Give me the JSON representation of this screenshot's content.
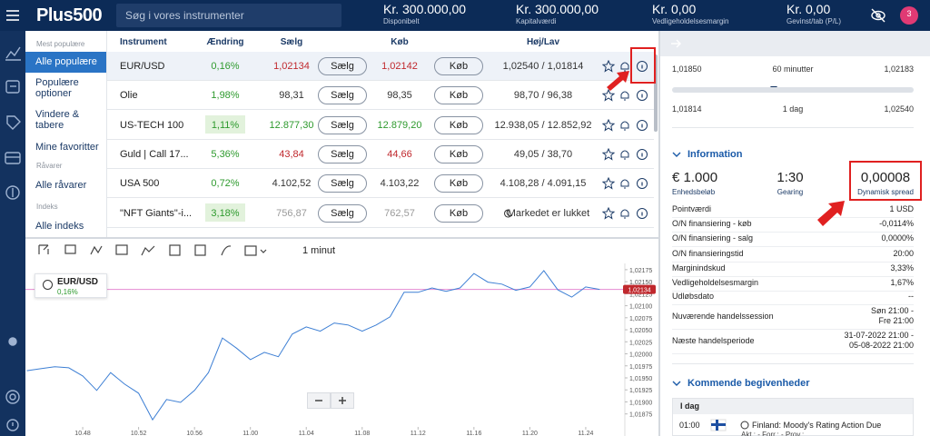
{
  "header": {
    "logo": "Plus500",
    "search_placeholder": "Søg i vores instrumenter",
    "stats": [
      {
        "value": "Kr. 300.000,00",
        "label": "Disponibelt"
      },
      {
        "value": "Kr. 300.000,00",
        "label": "Kapitalværdi"
      },
      {
        "value": "Kr. 0,00",
        "label": "Vedligeholdelsesmargin"
      },
      {
        "value": "Kr. 0,00",
        "label": "Gevinst/tab (P/L)"
      }
    ],
    "badge": "3"
  },
  "sidebar": {
    "sections": [
      {
        "title": "Mest populære",
        "items": [
          "Alle populære",
          "Populære optioner",
          "Vindere & tabere",
          "Mine favoritter"
        ]
      },
      {
        "title": "Råvarer",
        "items": [
          "Alle råvarer"
        ]
      },
      {
        "title": "Indeks",
        "items": [
          "Alle indeks"
        ]
      }
    ]
  },
  "table": {
    "columns": [
      "Instrument",
      "Ændring",
      "Sælg",
      "Køb",
      "Høj/Lav"
    ],
    "sell_button": "Sælg",
    "buy_button": "Køb",
    "rows": [
      {
        "instrument": "EUR/USD",
        "change": "0,16%",
        "sell": "1,02134",
        "buy": "1,02142",
        "high_low": "1,02540 / 1,01814"
      },
      {
        "instrument": "Olie",
        "change": "1,98%",
        "sell": "98,31",
        "buy": "98,35",
        "high_low": "98,70 / 96,38"
      },
      {
        "instrument": "US-TECH 100",
        "change": "1,11%",
        "sell": "12.877,30",
        "buy": "12.879,20",
        "high_low": "12.938,05 / 12.852,92"
      },
      {
        "instrument": "Guld | Call 17...",
        "change": "5,36%",
        "sell": "43,84",
        "buy": "44,66",
        "high_low": "49,05 / 38,70"
      },
      {
        "instrument": "USA 500",
        "change": "0,72%",
        "sell": "4.102,52",
        "buy": "4.103,22",
        "high_low": "4.108,28 / 4.091,15"
      },
      {
        "instrument": "\"NFT Giants\"-i...",
        "change": "3,18%",
        "sell": "756,87",
        "buy": "762,57",
        "high_low": "Markedet er lukket"
      }
    ]
  },
  "chart": {
    "type": "line",
    "instrument": "EUR/USD",
    "change": "0,16%",
    "timeframe": "1 minut",
    "color": "#3d7fd4",
    "x": [
      644,
      645,
      646,
      647,
      648,
      649,
      650,
      651,
      652,
      653,
      654,
      655,
      656,
      657,
      658,
      659,
      660,
      661,
      662,
      663,
      664,
      665,
      666,
      667,
      668,
      669,
      670,
      671,
      672,
      673,
      674,
      675,
      676,
      677,
      678,
      679,
      680,
      681,
      682,
      683,
      684,
      685
    ],
    "values": [
      1.01965,
      1.01969,
      1.01973,
      1.01971,
      1.01954,
      1.01924,
      1.01961,
      1.01937,
      1.01918,
      1.01863,
      1.01905,
      1.01899,
      1.01924,
      1.01961,
      1.02033,
      1.02012,
      1.01988,
      1.02003,
      1.01994,
      1.02041,
      1.02056,
      1.02047,
      1.02064,
      1.0206,
      1.02047,
      1.0206,
      1.02077,
      1.02128,
      1.02128,
      1.02137,
      1.0213,
      1.02137,
      1.02167,
      1.02149,
      1.02145,
      1.02132,
      1.02139,
      1.02173,
      1.02133,
      1.02118,
      1.02139,
      1.02134
    ],
    "xlim": [
      643.9,
      686.8
    ],
    "xticks": [
      {
        "value": 648,
        "label": "10.48"
      },
      {
        "value": 652,
        "label": "10.52"
      },
      {
        "value": 656,
        "label": "10.56"
      },
      {
        "value": 660,
        "label": "11.00"
      },
      {
        "value": 664,
        "label": "11.04"
      },
      {
        "value": 668,
        "label": "11.08"
      },
      {
        "value": 672,
        "label": "11.12"
      },
      {
        "value": 676,
        "label": "11.16"
      },
      {
        "value": 680,
        "label": "11.20"
      },
      {
        "value": 684,
        "label": "11.24"
      }
    ],
    "ylim": [
      1.01848,
      1.02188
    ],
    "yticks": [
      {
        "value": 1.01875,
        "label": "1,01875"
      },
      {
        "value": 1.019,
        "label": "1,01900"
      },
      {
        "value": 1.01925,
        "label": "1,01925"
      },
      {
        "value": 1.0195,
        "label": "1,01950"
      },
      {
        "value": 1.01975,
        "label": "1,01975"
      },
      {
        "value": 1.02,
        "label": "1,02000"
      },
      {
        "value": 1.02025,
        "label": "1,02025"
      },
      {
        "value": 1.0205,
        "label": "1,02050"
      },
      {
        "value": 1.02075,
        "label": "1,02075"
      },
      {
        "value": 1.021,
        "label": "1,02100"
      },
      {
        "value": 1.02125,
        "label": "1,02125"
      },
      {
        "value": 1.0215,
        "label": "1,02150"
      },
      {
        "value": 1.02175,
        "label": "1,02175"
      }
    ],
    "current_price": {
      "value": 1.02134,
      "label": "1,02134"
    }
  },
  "right_panel": {
    "ranges": [
      {
        "low": "1,01850",
        "period": "60 minutter",
        "high": "1,02183"
      },
      {
        "low": "1,01814",
        "period": "1 dag",
        "high": "1,02540"
      }
    ],
    "information": {
      "title": "Information",
      "stats": [
        {
          "value": "€ 1.000",
          "label": "Enhedsbeløb"
        },
        {
          "value": "1:30",
          "label": "Gearing"
        },
        {
          "value": "0,00008",
          "label": "Dynamisk spread"
        }
      ],
      "details": [
        {
          "label": "Pointværdi",
          "value": "1 USD"
        },
        {
          "label": "O/N finansiering - køb",
          "value": "-0,0114%"
        },
        {
          "label": "O/N finansiering - salg",
          "value": "0,0000%"
        },
        {
          "label": "O/N finansieringstid",
          "value": "20:00"
        },
        {
          "label": "Marginindskud",
          "value": "3,33%"
        },
        {
          "label": "Vedligeholdelsesmargin",
          "value": "1,67%"
        },
        {
          "label": "Udløbsdato",
          "value": "--"
        },
        {
          "label": "Nuværende handelssession",
          "value": [
            "Søn 21:00 -",
            "Fre 21:00"
          ]
        },
        {
          "label": "Næste handelsperiode",
          "value": [
            "31-07-2022 21:00 -",
            "05-08-2022 21:00"
          ]
        }
      ]
    },
    "events": {
      "title": "Kommende begivenheder",
      "day": "I dag",
      "items": [
        {
          "time": "01:00",
          "title": "Finland: Moody's Rating Action Due",
          "meta": "Akt.: -  Forr.: -  Prov.:"
        }
      ]
    }
  }
}
